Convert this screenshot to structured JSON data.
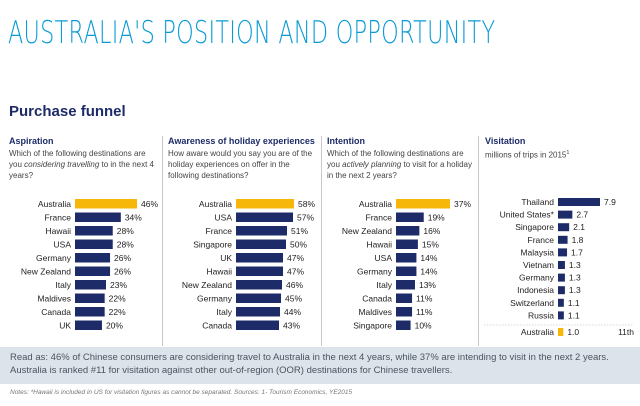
{
  "header": {
    "title": "AUSTRALIA'S POSITION AND OPPORTUNITY",
    "subtitle": "Purchase funnel"
  },
  "colors": {
    "title": "#0a9bd6",
    "navy": "#1d2c68",
    "highlight": "#f6b60a",
    "readas_bg": "#dde3ea"
  },
  "panels": [
    {
      "heading": "Aspiration",
      "question_pre": "Which of the following destinations are you ",
      "question_em": "considering travelling",
      "question_post": " to in the next 4 years?"
    },
    {
      "heading": "Awareness of holiday experiences",
      "question_pre": "How aware would you say you are of the holiday experiences on offer in the following destinations?",
      "question_em": "",
      "question_post": ""
    },
    {
      "heading": "Intention",
      "question_pre": "Which of the following destinations are you ",
      "question_em": "actively planning",
      "question_post": " to visit for a holiday in the next 2 years?"
    },
    {
      "heading": "Visitation",
      "question_pre": "millions of trips in 2015",
      "question_em": "",
      "question_post": "",
      "footnote_mark": "1"
    }
  ],
  "chart_data": [
    {
      "type": "bar",
      "orientation": "horizontal",
      "title": "Aspiration",
      "categories": [
        "Australia",
        "France",
        "Hawaii",
        "USA",
        "Germany",
        "New Zealand",
        "Italy",
        "Maldives",
        "Canada",
        "UK"
      ],
      "values": [
        46,
        34,
        28,
        28,
        26,
        26,
        23,
        22,
        22,
        20
      ],
      "labels": [
        "46%",
        "34%",
        "28%",
        "28%",
        "26%",
        "26%",
        "23%",
        "22%",
        "22%",
        "20%"
      ],
      "highlight": "Australia",
      "xlim": [
        0,
        46
      ]
    },
    {
      "type": "bar",
      "orientation": "horizontal",
      "title": "Awareness of holiday experiences",
      "categories": [
        "Australia",
        "USA",
        "France",
        "Singapore",
        "UK",
        "Hawaii",
        "New Zealand",
        "Germany",
        "Italy",
        "Canada"
      ],
      "values": [
        58,
        57,
        51,
        50,
        47,
        47,
        46,
        45,
        44,
        43
      ],
      "labels": [
        "58%",
        "57%",
        "51%",
        "50%",
        "47%",
        "47%",
        "46%",
        "45%",
        "44%",
        "43%"
      ],
      "highlight": "Australia",
      "xlim": [
        0,
        58
      ]
    },
    {
      "type": "bar",
      "orientation": "horizontal",
      "title": "Intention",
      "categories": [
        "Australia",
        "France",
        "New Zealand",
        "Hawaii",
        "USA",
        "Germany",
        "Italy",
        "Canada",
        "Maldives",
        "Singapore"
      ],
      "values": [
        37,
        19,
        16,
        15,
        14,
        14,
        13,
        11,
        11,
        10
      ],
      "labels": [
        "37%",
        "19%",
        "16%",
        "15%",
        "14%",
        "14%",
        "13%",
        "11%",
        "11%",
        "10%"
      ],
      "highlight": "Australia",
      "xlim": [
        0,
        37
      ]
    },
    {
      "type": "bar",
      "orientation": "horizontal",
      "title": "Visitation",
      "categories": [
        "Thailand",
        "United States*",
        "Singapore",
        "France",
        "Malaysia",
        "Vietnam",
        "Germany",
        "Indonesia",
        "Switzerland",
        "Russia",
        "Australia"
      ],
      "values": [
        7.9,
        2.7,
        2.1,
        1.8,
        1.7,
        1.3,
        1.3,
        1.3,
        1.1,
        1.1,
        1.0
      ],
      "labels": [
        "7.9",
        "2.7",
        "2.1",
        "1.8",
        "1.7",
        "1.3",
        "1.3",
        "1.3",
        "1.1",
        "1.1",
        "1.0"
      ],
      "highlight": "Australia",
      "rank_label": "11th",
      "xlim": [
        0,
        7.9
      ]
    }
  ],
  "footer": {
    "read_as": "Read as: 46% of Chinese consumers are considering travel to Australia in the next 4 years, while 37% are intending to visit in the next 2 years. Australia is ranked #11 for visitation against other out-of-region (OOR) destinations for Chinese travellers.",
    "notes": "Notes: *Hawaii is included in US for visitation figures as cannot be separated. Sources: 1- Tourism Economics, YE2015"
  }
}
